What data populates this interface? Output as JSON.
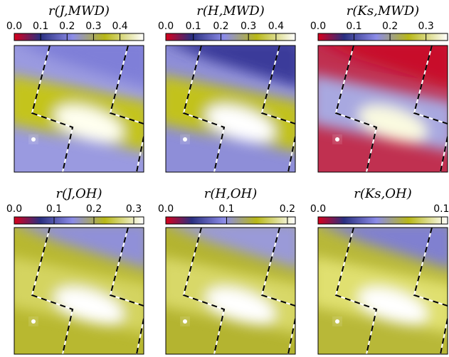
{
  "chart_data": [
    {
      "type": "heatmap",
      "title": "r(J,MWD)",
      "clim": [
        0,
        0.49
      ],
      "cticks": [
        {
          "value": 0,
          "label": "0.0"
        },
        0.1,
        0.2,
        0.3,
        0.4
      ]
    },
    {
      "type": "heatmap",
      "title": "r(H,MWD)",
      "clim": [
        0,
        0.47
      ],
      "cticks": [
        {
          "value": 0,
          "label": "0.0"
        },
        0.1,
        0.2,
        0.3,
        0.4
      ]
    },
    {
      "type": "heatmap",
      "title": "r(Ks,MWD)",
      "clim": [
        0,
        0.36
      ],
      "cticks": [
        {
          "value": 0,
          "label": "0.0"
        },
        0.1,
        0.2,
        0.3
      ]
    },
    {
      "type": "heatmap",
      "title": "r(J,OH)",
      "clim": [
        0,
        0.325
      ],
      "cticks": [
        {
          "value": 0,
          "label": "0.0"
        },
        0.1,
        0.2,
        0.3
      ]
    },
    {
      "type": "heatmap",
      "title": "r(H,OH)",
      "clim": [
        0,
        0.213
      ],
      "cticks": [
        {
          "value": 0,
          "label": "0.0"
        },
        0.1,
        0.2
      ]
    },
    {
      "type": "heatmap",
      "title": "r(Ks,OH)",
      "clim": [
        0,
        0.105
      ],
      "cticks": [
        {
          "value": 0,
          "label": "0.0"
        },
        0.1
      ]
    }
  ]
}
